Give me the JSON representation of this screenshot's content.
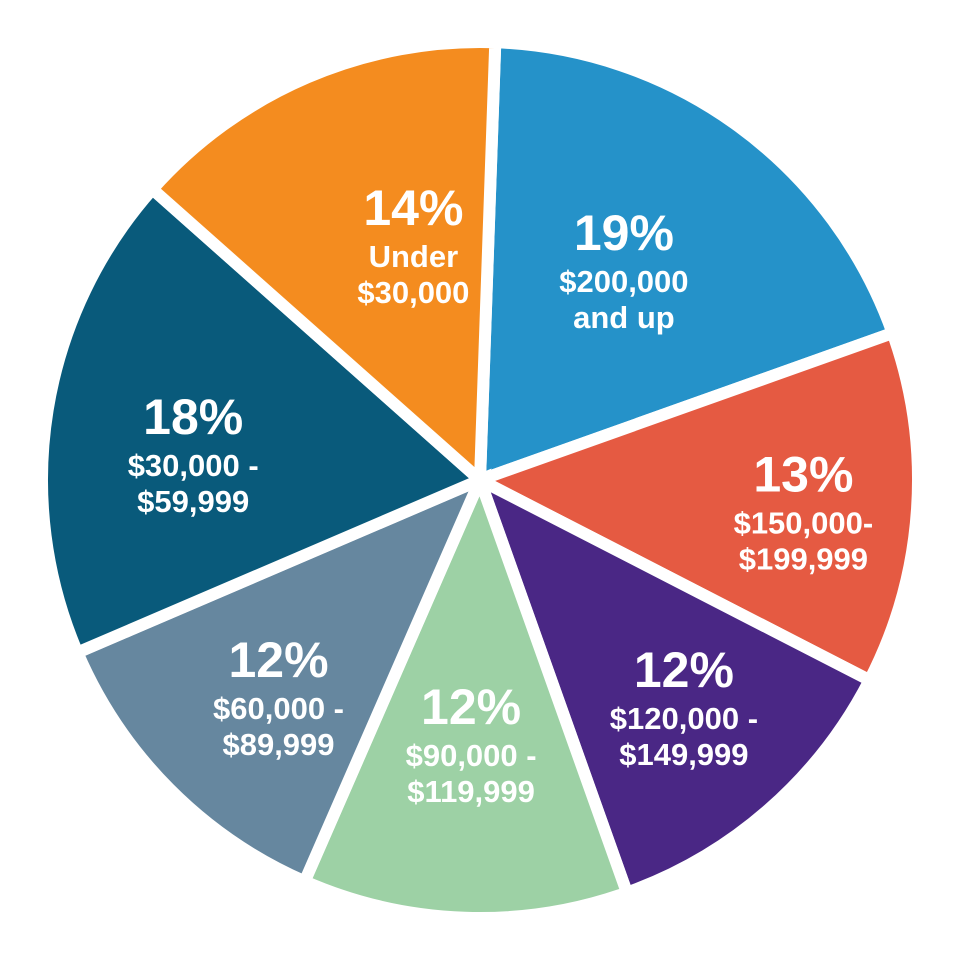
{
  "chart_data": {
    "type": "pie",
    "title": "",
    "slices": [
      {
        "label_lines": [
          "$200,000",
          "and up"
        ],
        "value": 19,
        "value_label": "19%",
        "color": "#2592c9"
      },
      {
        "label_lines": [
          "$150,000-",
          "$199,999"
        ],
        "value": 13,
        "value_label": "13%",
        "color": "#e55a42"
      },
      {
        "label_lines": [
          "$120,000 -",
          "$149,999"
        ],
        "value": 12,
        "value_label": "12%",
        "color": "#4a2785"
      },
      {
        "label_lines": [
          "$90,000 -",
          "$119,999"
        ],
        "value": 12,
        "value_label": "12%",
        "color": "#9dd1a5"
      },
      {
        "label_lines": [
          "$60,000 -",
          "$89,999"
        ],
        "value": 12,
        "value_label": "12%",
        "color": "#66879f"
      },
      {
        "label_lines": [
          "$30,000 -",
          "$59,999"
        ],
        "value": 18,
        "value_label": "18%",
        "color": "#095a7b"
      },
      {
        "label_lines": [
          "Under",
          "$30,000"
        ],
        "value": 14,
        "value_label": "14%",
        "color": "#f48c1f"
      }
    ]
  }
}
